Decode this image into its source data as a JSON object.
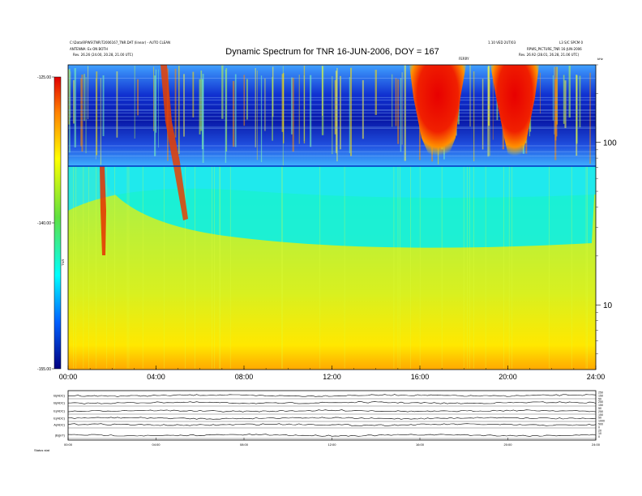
{
  "header": {
    "title": "Dynamic Spectrum for TNR 16-JUN-2006, DOY = 167",
    "left_line1": "C:\\Data\\RPWS\\TNR\\T2006167_TNR.DAT (linear) - AUTO CLEAN",
    "left_line2": "ANTENNA: Ex ON BOTH",
    "left_line3": "Rev.    26.26 (24.00, 20.28, 21.00 UTC)",
    "right_line1": "1.10 VED 2UT/03",
    "right_line2": "L3 S/C SPCM 0",
    "right_line3": "RPWS_PICTURE_TNR 16-JUN-2006",
    "right_line4": "Rev.    26.92 (28.01, 26.28, 21.06 UTC)",
    "mid_mark": "FERRY"
  },
  "colorbar": {
    "label": "TNR",
    "tick_labels": [
      "-125.00",
      "-140.00",
      "-155.00"
    ],
    "colors": [
      "#e00000",
      "#ff8000",
      "#ffff00",
      "#60e040",
      "#00ffff",
      "#0060ff",
      "#000080"
    ]
  },
  "chart_data": {
    "type": "heatmap",
    "title": "Dynamic Spectrum for TNR 16-JUN-2006, DOY = 167",
    "x_label": "",
    "y_label": "kHz",
    "x_tick_labels": [
      "00:00",
      "04:00",
      "08:00",
      "12:00",
      "16:00",
      "20:00",
      "24:00"
    ],
    "x_range_hours": [
      0,
      24
    ],
    "y_scale": "log",
    "y_range": [
      4,
      300
    ],
    "y_tick_labels": [
      "100",
      "10"
    ],
    "y_tick_values": [
      100,
      10
    ],
    "color_range": [
      -155,
      -125
    ],
    "upper_band_boundary_khz": 70,
    "features": [
      {
        "name": "red emission patch",
        "start_hour": 15.9,
        "end_hour": 17.7,
        "from_khz": 75,
        "to_khz": 300
      },
      {
        "name": "red emission patch",
        "start_hour": 19.9,
        "end_hour": 21.2,
        "from_khz": 70,
        "to_khz": 300
      },
      {
        "name": "drifting burst",
        "start_hour": 4.2,
        "end_hour": 5.3,
        "from_khz": 300,
        "to_khz": 40
      },
      {
        "name": "drifting burst",
        "start_hour": 1.4,
        "end_hour": 1.7,
        "from_khz": 65,
        "to_khz": 20
      }
    ]
  },
  "bottom_panel": {
    "row_labels": [
      "B(ADC)",
      "B(ADC)",
      "E(ADC)",
      "E(ADC)",
      "A(ADC)",
      "|B|(nT)"
    ],
    "right_tick_labels": [
      "250",
      "150",
      "50",
      "250",
      "150",
      "50",
      "250",
      "150",
      "50",
      "1000",
      "500",
      "0",
      "20",
      "10",
      "0"
    ],
    "x_tick_labels": [
      "00:00",
      "04:00",
      "08:00",
      "12:00",
      "16:00",
      "20:00",
      "24:00"
    ],
    "footer_left": "Status  stat"
  }
}
